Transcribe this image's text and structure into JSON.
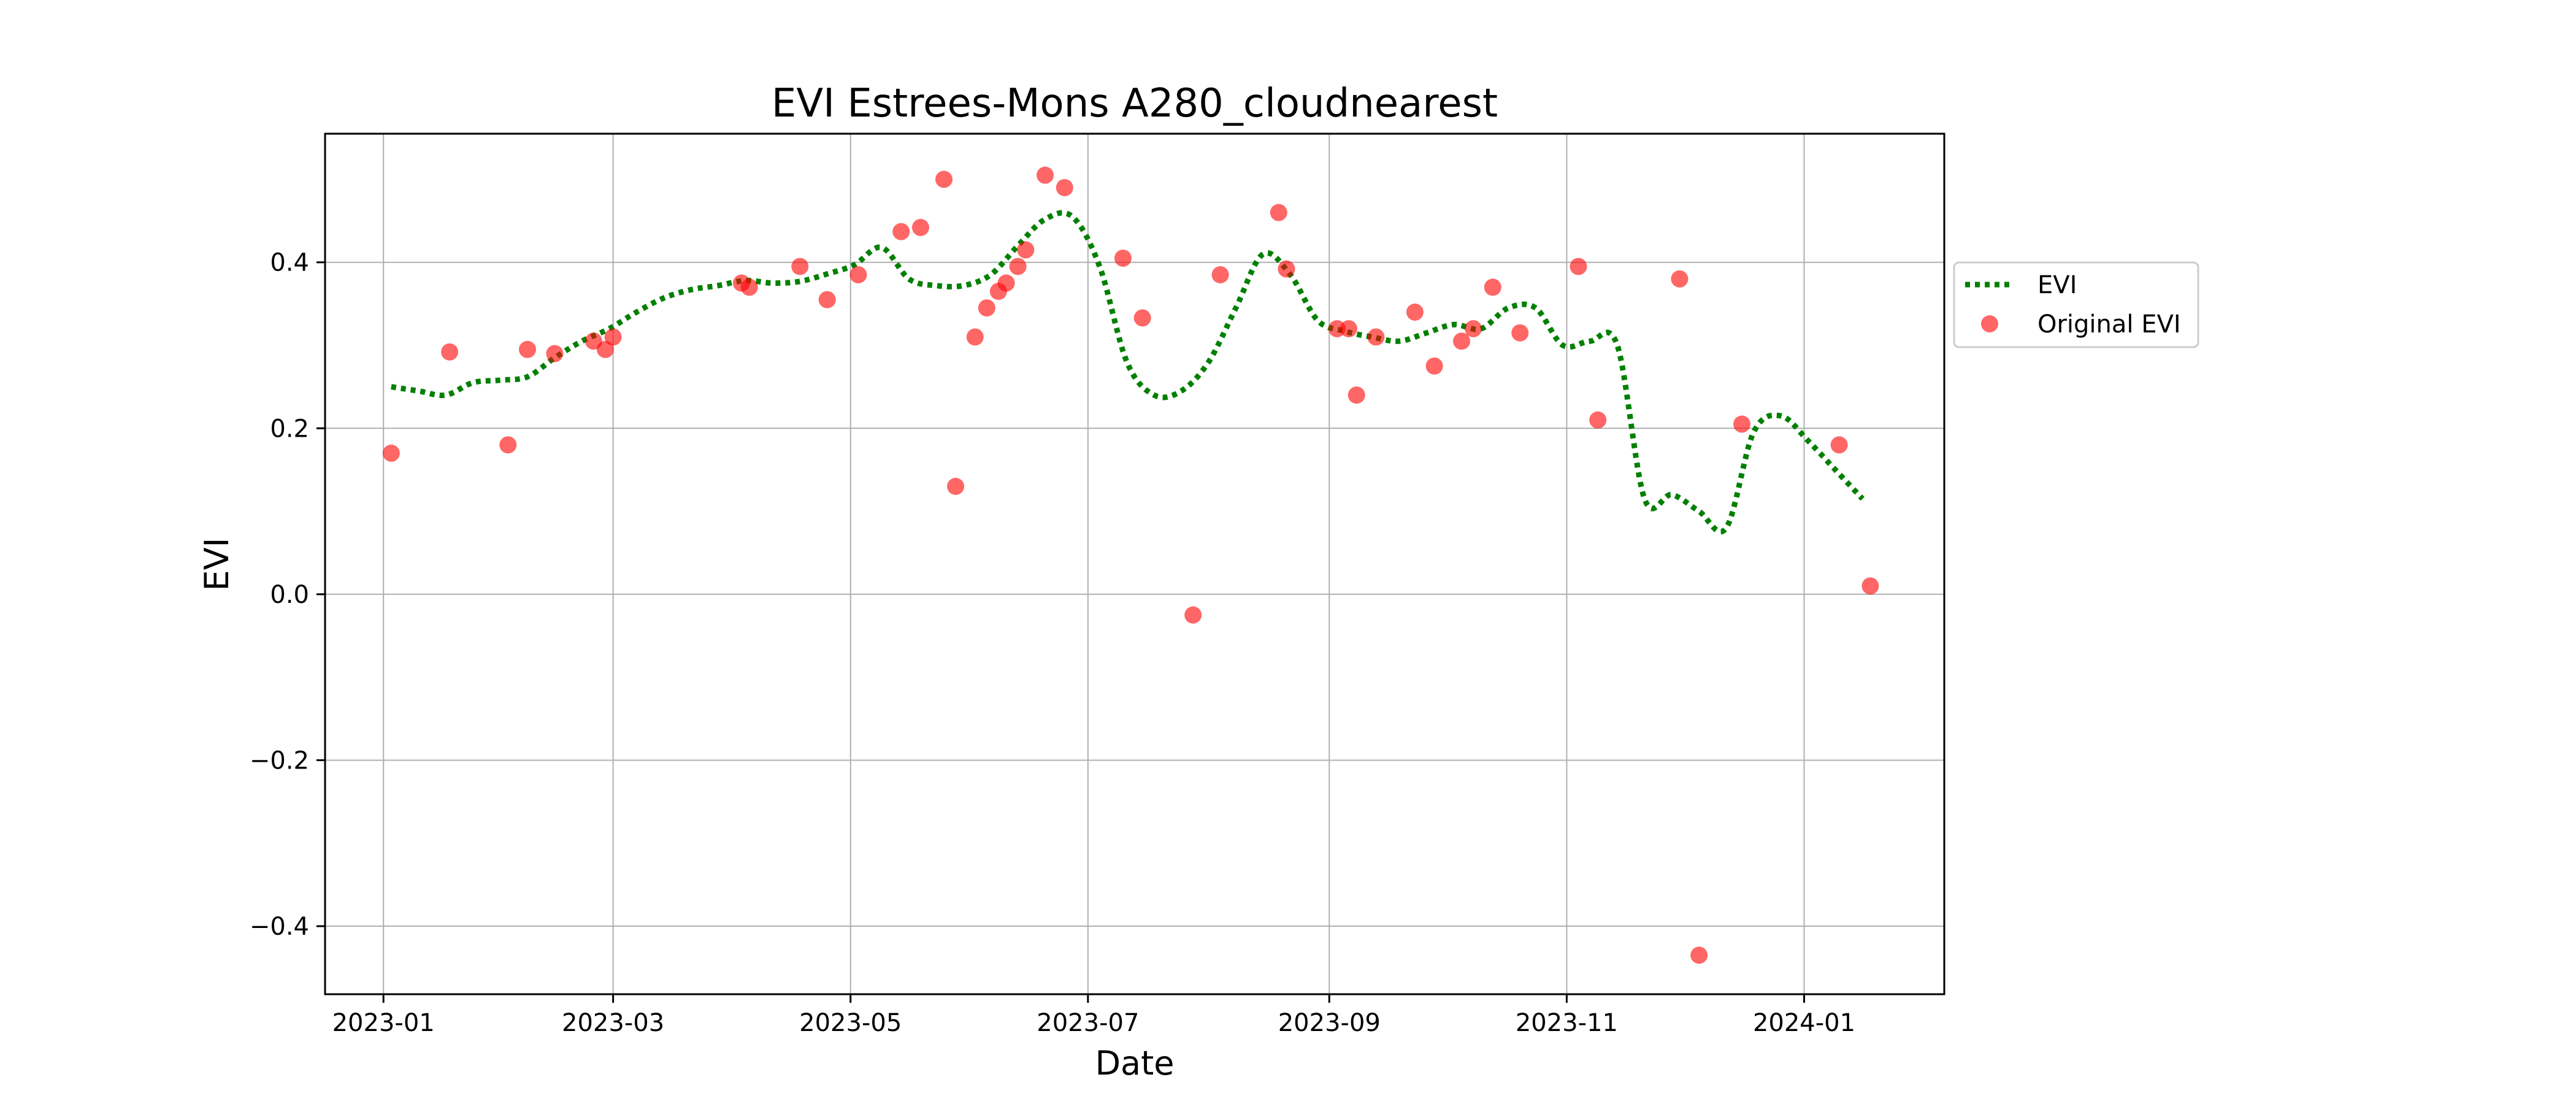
{
  "chart_data": {
    "type": "scatter",
    "title": "EVI Estrees-Mons A280_cloudnearest",
    "xlabel": "Date",
    "ylabel": "EVI",
    "xlim": [
      "2022-12-17",
      "2024-02-06"
    ],
    "ylim": [
      -0.482,
      0.555
    ],
    "x_ticks": [
      "2023-01-01",
      "2023-03-01",
      "2023-05-01",
      "2023-07-01",
      "2023-09-01",
      "2023-11-01",
      "2024-01-01"
    ],
    "x_tick_labels": [
      "2023-01",
      "2023-03",
      "2023-05",
      "2023-07",
      "2023-09",
      "2023-11",
      "2024-01"
    ],
    "y_ticks": [
      -0.4,
      -0.2,
      0.0,
      0.2,
      0.4
    ],
    "y_tick_labels": [
      "−0.4",
      "−0.2",
      "0.0",
      "0.2",
      "0.4"
    ],
    "grid": true,
    "legend_position": "outside-right",
    "series": [
      {
        "name": "EVI",
        "kind": "line",
        "style": "dotted",
        "color": "#008000",
        "x": [
          "2023-01-03",
          "2023-01-10",
          "2023-01-17",
          "2023-01-24",
          "2023-01-31",
          "2023-02-07",
          "2023-02-14",
          "2023-02-21",
          "2023-02-28",
          "2023-03-07",
          "2023-03-14",
          "2023-03-21",
          "2023-03-28",
          "2023-04-04",
          "2023-04-11",
          "2023-04-18",
          "2023-04-25",
          "2023-05-02",
          "2023-05-09",
          "2023-05-16",
          "2023-05-23",
          "2023-05-30",
          "2023-06-06",
          "2023-06-13",
          "2023-06-20",
          "2023-06-27",
          "2023-07-04",
          "2023-07-11",
          "2023-07-18",
          "2023-07-25",
          "2023-08-01",
          "2023-08-08",
          "2023-08-15",
          "2023-08-22",
          "2023-08-29",
          "2023-09-05",
          "2023-09-12",
          "2023-09-19",
          "2023-09-26",
          "2023-10-03",
          "2023-10-10",
          "2023-10-17",
          "2023-10-24",
          "2023-10-31",
          "2023-11-07",
          "2023-11-14",
          "2023-11-21",
          "2023-11-28",
          "2023-12-05",
          "2023-12-12",
          "2023-12-19",
          "2023-12-26",
          "2024-01-02",
          "2024-01-09",
          "2024-01-16"
        ],
        "y": [
          0.25,
          0.245,
          0.24,
          0.255,
          0.258,
          0.262,
          0.285,
          0.305,
          0.32,
          0.34,
          0.357,
          0.367,
          0.372,
          0.378,
          0.375,
          0.377,
          0.386,
          0.397,
          0.418,
          0.38,
          0.372,
          0.372,
          0.385,
          0.42,
          0.452,
          0.455,
          0.395,
          0.28,
          0.24,
          0.245,
          0.28,
          0.345,
          0.41,
          0.385,
          0.33,
          0.317,
          0.31,
          0.305,
          0.315,
          0.325,
          0.32,
          0.345,
          0.345,
          0.3,
          0.305,
          0.3,
          0.115,
          0.12,
          0.1,
          0.08,
          0.195,
          0.215,
          0.185,
          0.15,
          0.115
        ]
      },
      {
        "name": "Original EVI",
        "kind": "scatter",
        "color": "#ff0000",
        "alpha": 0.6,
        "x": [
          "2023-01-03",
          "2023-01-18",
          "2023-02-02",
          "2023-02-07",
          "2023-02-14",
          "2023-02-24",
          "2023-02-27",
          "2023-03-01",
          "2023-04-03",
          "2023-04-05",
          "2023-04-18",
          "2023-04-25",
          "2023-05-03",
          "2023-05-14",
          "2023-05-19",
          "2023-05-25",
          "2023-05-28",
          "2023-06-02",
          "2023-06-05",
          "2023-06-08",
          "2023-06-10",
          "2023-06-13",
          "2023-06-15",
          "2023-06-20",
          "2023-06-25",
          "2023-07-10",
          "2023-07-15",
          "2023-07-28",
          "2023-08-04",
          "2023-08-19",
          "2023-08-21",
          "2023-09-03",
          "2023-09-06",
          "2023-09-08",
          "2023-09-13",
          "2023-09-23",
          "2023-09-28",
          "2023-10-05",
          "2023-10-08",
          "2023-10-13",
          "2023-10-20",
          "2023-11-04",
          "2023-11-09",
          "2023-11-30",
          "2023-12-05",
          "2023-12-16",
          "2024-01-10",
          "2024-01-18"
        ],
        "y": [
          0.17,
          0.292,
          0.18,
          0.295,
          0.29,
          0.305,
          0.295,
          0.31,
          0.375,
          0.37,
          0.395,
          0.355,
          0.385,
          0.437,
          0.442,
          0.5,
          0.13,
          0.31,
          0.345,
          0.365,
          0.375,
          0.395,
          0.415,
          0.505,
          0.49,
          0.405,
          0.333,
          -0.025,
          0.385,
          0.46,
          0.392,
          0.32,
          0.32,
          0.24,
          0.31,
          0.34,
          0.275,
          0.305,
          0.32,
          0.37,
          0.315,
          0.395,
          0.21,
          0.38,
          -0.435,
          0.205,
          0.18,
          0.01
        ]
      }
    ]
  }
}
